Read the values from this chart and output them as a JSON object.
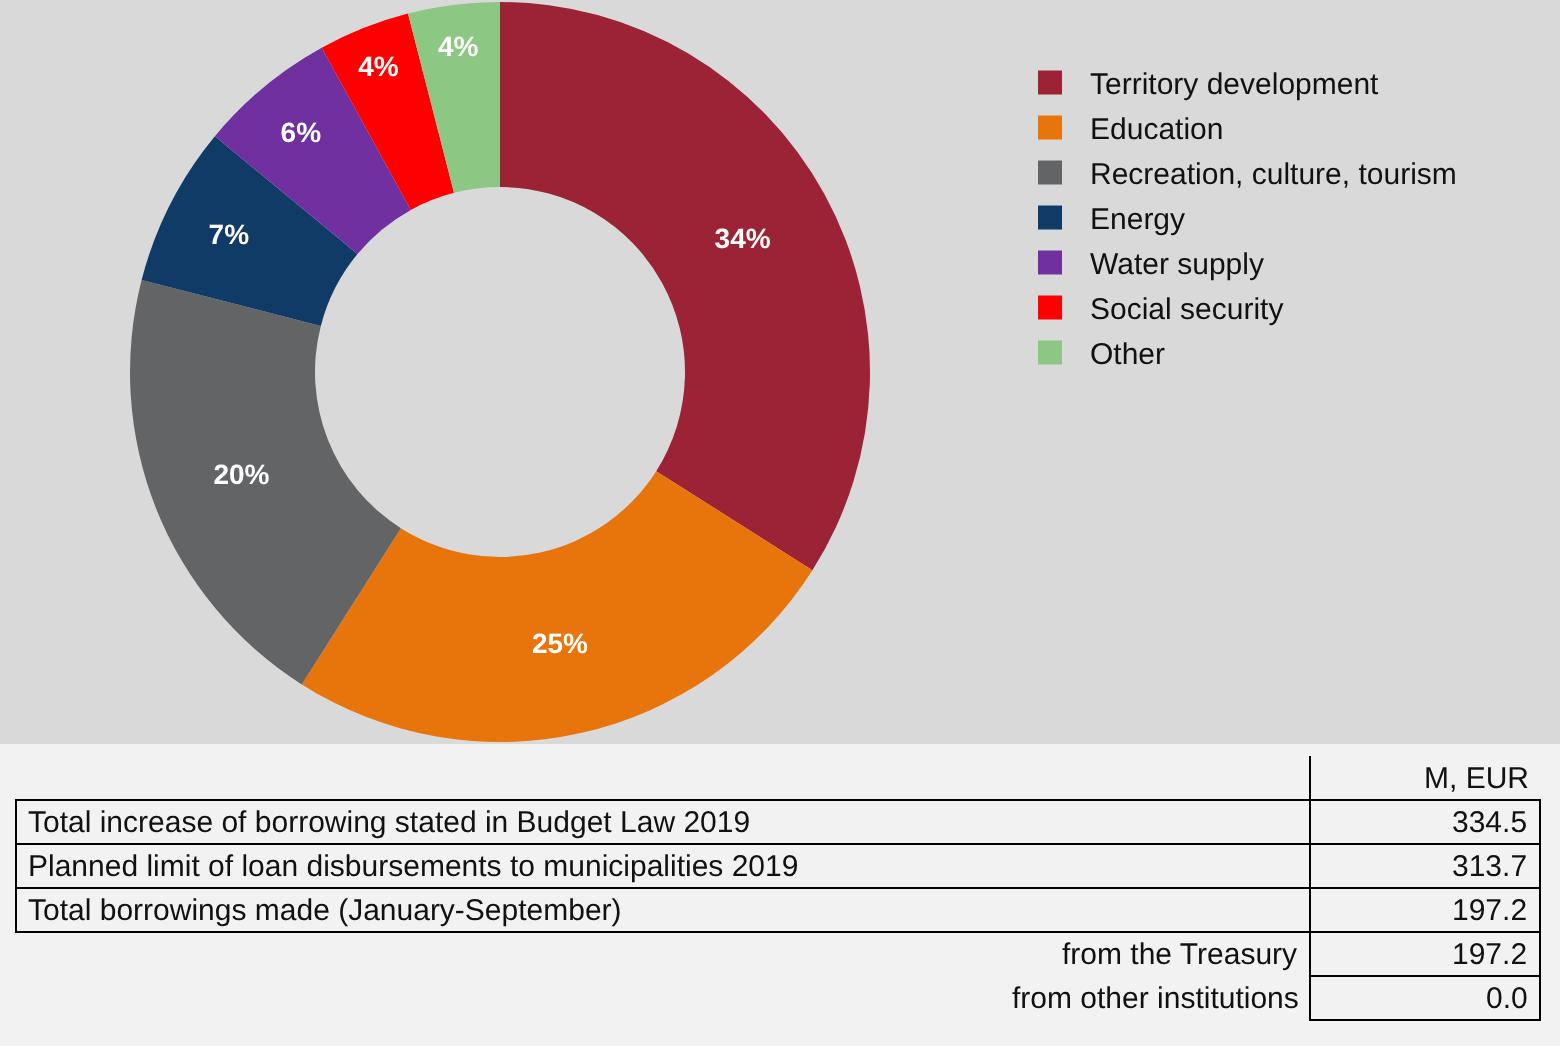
{
  "chart_data": {
    "type": "donut",
    "categories": [
      "Territory development",
      "Education",
      "Recreation, culture, tourism",
      "Energy",
      "Water supply",
      "Social security",
      "Other"
    ],
    "values": [
      34,
      25,
      20,
      7,
      6,
      4,
      4
    ],
    "value_labels": [
      "34%",
      "25%",
      "20%",
      "7%",
      "6%",
      "4%",
      "4%"
    ],
    "colors": [
      "#9b2335",
      "#e8740c",
      "#636466",
      "#0f3b66",
      "#7030a0",
      "#ff0000",
      "#8cc784"
    ],
    "legend": "right",
    "annotations": [
      "M, EUR",
      "Total increase of borrowing stated in Budget Law 2019",
      "334.5",
      "Planned limit of loan disbursements to municipalities 2019",
      "313.7",
      "Total borrowings made (January-September)",
      "197.2",
      "from the Treasury",
      "197.2",
      "from other institutions",
      "0.0"
    ]
  }
}
